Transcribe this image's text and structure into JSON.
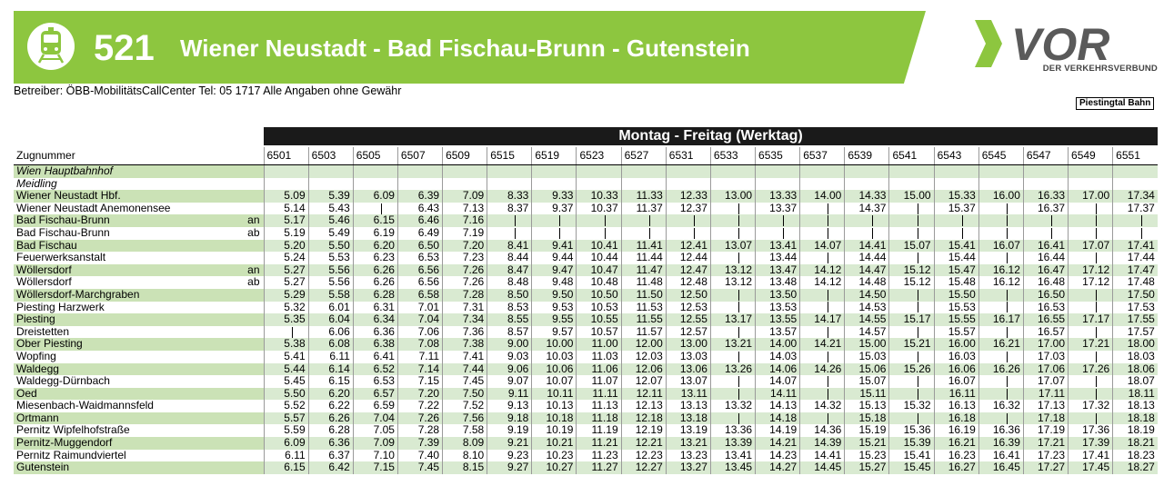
{
  "header": {
    "line_number": "521",
    "route_title": "Wiener Neustadt - Bad Fischau-Brunn - Gutenstein",
    "icon": "train-icon",
    "accent_color": "#8dc63f"
  },
  "logo": {
    "brand": "VOR",
    "tagline": "DER VERKEHRSVERBUND",
    "brand_color": "#8dc63f",
    "text_color": "#5a5a5a"
  },
  "operator_note": "Betreiber: ÖBB-MobilitätsCallCenter Tel: 05 1717 Alle Angaben ohne Gewähr",
  "line_tag": "Piestingtal Bahn",
  "day_header": "Montag - Freitag (Werktag)",
  "train_label": "Zugnummer",
  "trains": [
    "6501",
    "6503",
    "6505",
    "6507",
    "6509",
    "6515",
    "6519",
    "6523",
    "6527",
    "6531",
    "6533",
    "6535",
    "6537",
    "6539",
    "6541",
    "6543",
    "6545",
    "6547",
    "6549",
    "6551"
  ],
  "stops": [
    {
      "name": "Wien Hauptbahnhof",
      "italic": true,
      "qualifier": "",
      "times": [
        "",
        "",
        "",
        "",
        "",
        "",
        "",
        "",
        "",
        "",
        "",
        "",
        "",
        "",
        "",
        "",
        "",
        "",
        "",
        ""
      ]
    },
    {
      "name": "Meidling",
      "italic": true,
      "qualifier": "",
      "times": [
        "",
        "",
        "",
        "",
        "",
        "",
        "",
        "",
        "",
        "",
        "",
        "",
        "",
        "",
        "",
        "",
        "",
        "",
        "",
        ""
      ]
    },
    {
      "name": "Wiener Neustadt Hbf.",
      "qualifier": "",
      "times": [
        "5.09",
        "5.39",
        "6.09",
        "6.39",
        "7.09",
        "8.33",
        "9.33",
        "10.33",
        "11.33",
        "12.33",
        "13.00",
        "13.33",
        "14.00",
        "14.33",
        "15.00",
        "15.33",
        "16.00",
        "16.33",
        "17.00",
        "17.34"
      ]
    },
    {
      "name": "Wiener Neustadt Anemonensee",
      "qualifier": "",
      "times": [
        "5.14",
        "5.43",
        "|",
        "6.43",
        "7.13",
        "8.37",
        "9.37",
        "10.37",
        "11.37",
        "12.37",
        "|",
        "13.37",
        "|",
        "14.37",
        "|",
        "15.37",
        "|",
        "16.37",
        "|",
        "17.37"
      ]
    },
    {
      "name": "Bad Fischau-Brunn",
      "qualifier": "an",
      "times": [
        "5.17",
        "5.46",
        "6.15",
        "6.46",
        "7.16",
        "|",
        "|",
        "|",
        "|",
        "|",
        "|",
        "|",
        "|",
        "|",
        "|",
        "|",
        "|",
        "|",
        "|",
        "|"
      ]
    },
    {
      "name": "Bad Fischau-Brunn",
      "qualifier": "ab",
      "times": [
        "5.19",
        "5.49",
        "6.19",
        "6.49",
        "7.19",
        "|",
        "|",
        "|",
        "|",
        "|",
        "|",
        "|",
        "|",
        "|",
        "|",
        "|",
        "|",
        "|",
        "|",
        "|"
      ]
    },
    {
      "name": "Bad Fischau",
      "qualifier": "",
      "times": [
        "5.20",
        "5.50",
        "6.20",
        "6.50",
        "7.20",
        "8.41",
        "9.41",
        "10.41",
        "11.41",
        "12.41",
        "13.07",
        "13.41",
        "14.07",
        "14.41",
        "15.07",
        "15.41",
        "16.07",
        "16.41",
        "17.07",
        "17.41"
      ]
    },
    {
      "name": "Feuerwerksanstalt",
      "qualifier": "",
      "times": [
        "5.24",
        "5.53",
        "6.23",
        "6.53",
        "7.23",
        "8.44",
        "9.44",
        "10.44",
        "11.44",
        "12.44",
        "|",
        "13.44",
        "|",
        "14.44",
        "|",
        "15.44",
        "|",
        "16.44",
        "|",
        "17.44"
      ]
    },
    {
      "name": "Wöllersdorf",
      "qualifier": "an",
      "times": [
        "5.27",
        "5.56",
        "6.26",
        "6.56",
        "7.26",
        "8.47",
        "9.47",
        "10.47",
        "11.47",
        "12.47",
        "13.12",
        "13.47",
        "14.12",
        "14.47",
        "15.12",
        "15.47",
        "16.12",
        "16.47",
        "17.12",
        "17.47"
      ]
    },
    {
      "name": "Wöllersdorf",
      "qualifier": "ab",
      "times": [
        "5.27",
        "5.56",
        "6.26",
        "6.56",
        "7.26",
        "8.48",
        "9.48",
        "10.48",
        "11.48",
        "12.48",
        "13.12",
        "13.48",
        "14.12",
        "14.48",
        "15.12",
        "15.48",
        "16.12",
        "16.48",
        "17.12",
        "17.48"
      ]
    },
    {
      "name": "Wöllersdorf-Marchgraben",
      "qualifier": "",
      "times": [
        "5.29",
        "5.58",
        "6.28",
        "6.58",
        "7.28",
        "8.50",
        "9.50",
        "10.50",
        "11.50",
        "12.50",
        "|",
        "13.50",
        "|",
        "14.50",
        "|",
        "15.50",
        "|",
        "16.50",
        "|",
        "17.50"
      ]
    },
    {
      "name": "Piesting Harzwerk",
      "qualifier": "",
      "times": [
        "5.32",
        "6.01",
        "6.31",
        "7.01",
        "7.31",
        "8.53",
        "9.53",
        "10.53",
        "11.53",
        "12.53",
        "|",
        "13.53",
        "|",
        "14.53",
        "|",
        "15.53",
        "|",
        "16.53",
        "|",
        "17.53"
      ]
    },
    {
      "name": "Piesting",
      "qualifier": "",
      "times": [
        "5.35",
        "6.04",
        "6.34",
        "7.04",
        "7.34",
        "8.55",
        "9.55",
        "10.55",
        "11.55",
        "12.55",
        "13.17",
        "13.55",
        "14.17",
        "14.55",
        "15.17",
        "15.55",
        "16.17",
        "16.55",
        "17.17",
        "17.55"
      ]
    },
    {
      "name": "Dreistetten",
      "qualifier": "",
      "times": [
        "|",
        "6.06",
        "6.36",
        "7.06",
        "7.36",
        "8.57",
        "9.57",
        "10.57",
        "11.57",
        "12.57",
        "|",
        "13.57",
        "|",
        "14.57",
        "|",
        "15.57",
        "|",
        "16.57",
        "|",
        "17.57"
      ]
    },
    {
      "name": "Ober Piesting",
      "qualifier": "",
      "times": [
        "5.38",
        "6.08",
        "6.38",
        "7.08",
        "7.38",
        "9.00",
        "10.00",
        "11.00",
        "12.00",
        "13.00",
        "13.21",
        "14.00",
        "14.21",
        "15.00",
        "15.21",
        "16.00",
        "16.21",
        "17.00",
        "17.21",
        "18.00"
      ]
    },
    {
      "name": "Wopfing",
      "qualifier": "",
      "times": [
        "5.41",
        "6.11",
        "6.41",
        "7.11",
        "7.41",
        "9.03",
        "10.03",
        "11.03",
        "12.03",
        "13.03",
        "|",
        "14.03",
        "|",
        "15.03",
        "|",
        "16.03",
        "|",
        "17.03",
        "|",
        "18.03"
      ]
    },
    {
      "name": "Waldegg",
      "qualifier": "",
      "times": [
        "5.44",
        "6.14",
        "6.52",
        "7.14",
        "7.44",
        "9.06",
        "10.06",
        "11.06",
        "12.06",
        "13.06",
        "13.26",
        "14.06",
        "14.26",
        "15.06",
        "15.26",
        "16.06",
        "16.26",
        "17.06",
        "17.26",
        "18.06"
      ]
    },
    {
      "name": "Waldegg-Dürnbach",
      "qualifier": "",
      "times": [
        "5.45",
        "6.15",
        "6.53",
        "7.15",
        "7.45",
        "9.07",
        "10.07",
        "11.07",
        "12.07",
        "13.07",
        "|",
        "14.07",
        "|",
        "15.07",
        "|",
        "16.07",
        "|",
        "17.07",
        "|",
        "18.07"
      ]
    },
    {
      "name": "Oed",
      "qualifier": "",
      "times": [
        "5.50",
        "6.20",
        "6.57",
        "7.20",
        "7.50",
        "9.11",
        "10.11",
        "11.11",
        "12.11",
        "13.11",
        "|",
        "14.11",
        "|",
        "15.11",
        "|",
        "16.11",
        "|",
        "17.11",
        "|",
        "18.11"
      ]
    },
    {
      "name": "Miesenbach-Waidmannsfeld",
      "qualifier": "",
      "times": [
        "5.52",
        "6.22",
        "6.59",
        "7.22",
        "7.52",
        "9.13",
        "10.13",
        "11.13",
        "12.13",
        "13.13",
        "13.32",
        "14.13",
        "14.32",
        "15.13",
        "15.32",
        "16.13",
        "16.32",
        "17.13",
        "17.32",
        "18.13"
      ]
    },
    {
      "name": "Ortmann",
      "qualifier": "",
      "times": [
        "5.57",
        "6.26",
        "7.04",
        "7.26",
        "7.56",
        "9.18",
        "10.18",
        "11.18",
        "12.18",
        "13.18",
        "|",
        "14.18",
        "|",
        "15.18",
        "|",
        "16.18",
        "|",
        "17.18",
        "|",
        "18.18"
      ]
    },
    {
      "name": "Pernitz Wipfelhofstraße",
      "qualifier": "",
      "times": [
        "5.59",
        "6.28",
        "7.05",
        "7.28",
        "7.58",
        "9.19",
        "10.19",
        "11.19",
        "12.19",
        "13.19",
        "13.36",
        "14.19",
        "14.36",
        "15.19",
        "15.36",
        "16.19",
        "16.36",
        "17.19",
        "17.36",
        "18.19"
      ]
    },
    {
      "name": "Pernitz-Muggendorf",
      "qualifier": "",
      "times": [
        "6.09",
        "6.36",
        "7.09",
        "7.39",
        "8.09",
        "9.21",
        "10.21",
        "11.21",
        "12.21",
        "13.21",
        "13.39",
        "14.21",
        "14.39",
        "15.21",
        "15.39",
        "16.21",
        "16.39",
        "17.21",
        "17.39",
        "18.21"
      ]
    },
    {
      "name": "Pernitz Raimundviertel",
      "qualifier": "",
      "times": [
        "6.11",
        "6.37",
        "7.10",
        "7.40",
        "8.10",
        "9.23",
        "10.23",
        "11.23",
        "12.23",
        "13.23",
        "13.41",
        "14.23",
        "14.41",
        "15.23",
        "15.41",
        "16.23",
        "16.41",
        "17.23",
        "17.41",
        "18.23"
      ]
    },
    {
      "name": "Gutenstein",
      "qualifier": "",
      "times": [
        "6.15",
        "6.42",
        "7.15",
        "7.45",
        "8.15",
        "9.27",
        "10.27",
        "11.27",
        "12.27",
        "13.27",
        "13.45",
        "14.27",
        "14.45",
        "15.27",
        "15.45",
        "16.27",
        "16.45",
        "17.27",
        "17.45",
        "18.27"
      ]
    }
  ]
}
